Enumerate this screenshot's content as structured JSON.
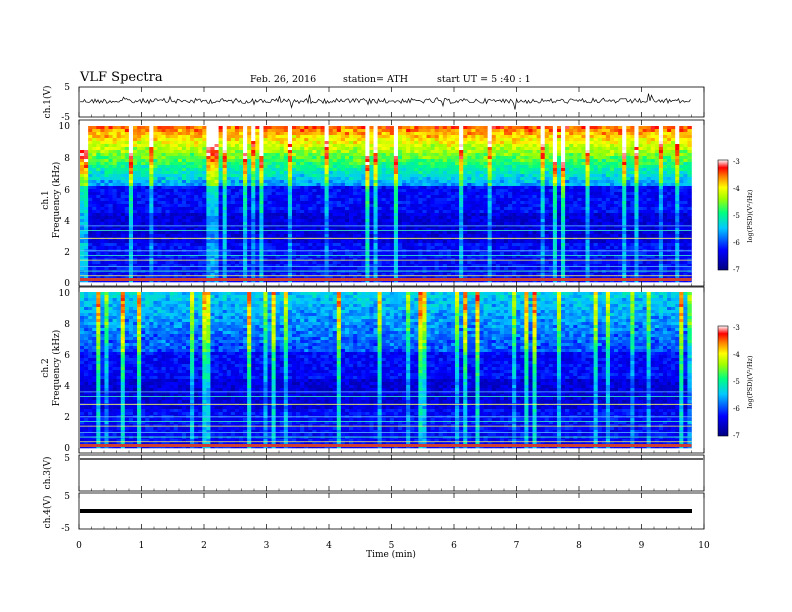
{
  "header": {
    "title": "VLF  Spectra",
    "date": "Feb. 26, 2016",
    "station": "station= ATH",
    "start": "start  UT  =   5  :40 : 1"
  },
  "chart_data": [
    {
      "type": "line",
      "panel": "ch1-waveform",
      "ylabel": "ch.1(V)",
      "ylim": [
        -5,
        5
      ],
      "yticks": [
        "5",
        "-5"
      ],
      "xlim": [
        0,
        10
      ],
      "description_level": "noisy signal near 0 V"
    },
    {
      "type": "heatmap",
      "panel": "ch1-spectrogram",
      "ylabel_line1": "ch.1",
      "ylabel_line2": "Frequency  (kHz)",
      "ylim": [
        0,
        10
      ],
      "yticks": [
        "0",
        "2",
        "4",
        "6",
        "8",
        "10"
      ],
      "xlim": [
        0,
        9.8
      ],
      "colorbar": {
        "label": "log(PSD)(V²/Hz)",
        "range": [
          -7,
          -3
        ],
        "ticks": [
          "-3",
          "-4",
          "-5",
          "-6",
          "-7"
        ]
      }
    },
    {
      "type": "heatmap",
      "panel": "ch2-spectrogram",
      "ylabel_line1": "ch.2",
      "ylabel_line2": "Frequency  (kHz)",
      "ylim": [
        0,
        10
      ],
      "yticks": [
        "0",
        "2",
        "4",
        "6",
        "8",
        "10"
      ],
      "xlim": [
        0,
        9.8
      ],
      "colorbar": {
        "label": "log(PSD)(V²/Hz)",
        "range": [
          -7,
          -3
        ],
        "ticks": [
          "-3",
          "-4",
          "-5",
          "-6",
          "-7"
        ]
      }
    },
    {
      "type": "line",
      "panel": "ch3-waveform",
      "ylabel": "ch.3(V)",
      "ylim": [
        -5,
        5
      ],
      "yticks": [
        "5",
        "-5"
      ],
      "xlim": [
        0,
        10
      ]
    },
    {
      "type": "line",
      "panel": "ch4-waveform",
      "ylabel": "ch.4(V)",
      "ylim": [
        -5,
        5
      ],
      "yticks": [
        "5",
        "-5"
      ],
      "xlim": [
        0,
        10
      ]
    }
  ],
  "xaxis": {
    "label": "Time  (min)",
    "ticks": [
      "0",
      "1",
      "2",
      "3",
      "4",
      "5",
      "6",
      "7",
      "8",
      "9",
      "10"
    ],
    "range": [
      0,
      10
    ]
  }
}
